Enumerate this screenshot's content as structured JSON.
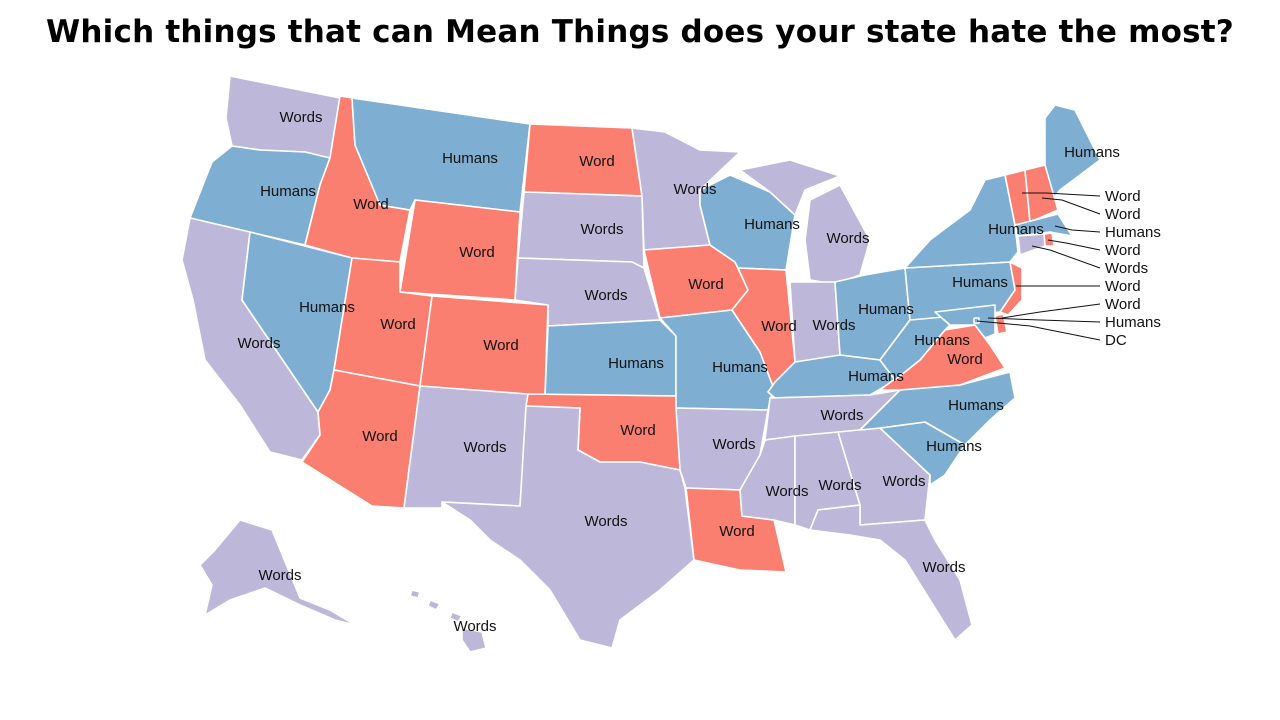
{
  "title": "Which things that can Mean Things does your state hate the most?",
  "colors": {
    "Words": "#bdb8d9",
    "Humans": "#7eafd2",
    "Word": "#fa7f70",
    "DC": "#7eafd2"
  },
  "states": [
    {
      "id": "WA",
      "value": "Words"
    },
    {
      "id": "OR",
      "value": "Humans"
    },
    {
      "id": "CA",
      "value": "Words"
    },
    {
      "id": "ID",
      "value": "Word"
    },
    {
      "id": "NV",
      "value": "Humans"
    },
    {
      "id": "MT",
      "value": "Humans"
    },
    {
      "id": "WY",
      "value": "Word"
    },
    {
      "id": "UT",
      "value": "Word"
    },
    {
      "id": "AZ",
      "value": "Word"
    },
    {
      "id": "CO",
      "value": "Word"
    },
    {
      "id": "NM",
      "value": "Words"
    },
    {
      "id": "ND",
      "value": "Word"
    },
    {
      "id": "SD",
      "value": "Words"
    },
    {
      "id": "NE",
      "value": "Words"
    },
    {
      "id": "KS",
      "value": "Humans"
    },
    {
      "id": "OK",
      "value": "Word"
    },
    {
      "id": "TX",
      "value": "Words"
    },
    {
      "id": "MN",
      "value": "Words"
    },
    {
      "id": "IA",
      "value": "Word"
    },
    {
      "id": "MO",
      "value": "Humans"
    },
    {
      "id": "AR",
      "value": "Words"
    },
    {
      "id": "LA",
      "value": "Word"
    },
    {
      "id": "WI",
      "value": "Humans"
    },
    {
      "id": "IL",
      "value": "Word"
    },
    {
      "id": "MI",
      "value": "Words"
    },
    {
      "id": "IN",
      "value": "Words"
    },
    {
      "id": "OH",
      "value": "Humans"
    },
    {
      "id": "KY",
      "value": "Humans"
    },
    {
      "id": "TN",
      "value": "Words"
    },
    {
      "id": "MS",
      "value": "Words"
    },
    {
      "id": "AL",
      "value": "Words"
    },
    {
      "id": "GA",
      "value": "Words"
    },
    {
      "id": "FL",
      "value": "Words"
    },
    {
      "id": "SC",
      "value": "Humans"
    },
    {
      "id": "NC",
      "value": "Humans"
    },
    {
      "id": "VA",
      "value": "Word"
    },
    {
      "id": "WV",
      "value": "Humans"
    },
    {
      "id": "PA",
      "value": "Humans"
    },
    {
      "id": "NY",
      "value": "Humans"
    },
    {
      "id": "ME",
      "value": "Humans"
    },
    {
      "id": "VT",
      "value": "Word"
    },
    {
      "id": "NH",
      "value": "Word"
    },
    {
      "id": "MA",
      "value": "Humans"
    },
    {
      "id": "RI",
      "value": "Word"
    },
    {
      "id": "CT",
      "value": "Words"
    },
    {
      "id": "NJ",
      "value": "Word"
    },
    {
      "id": "DE",
      "value": "Word"
    },
    {
      "id": "MD",
      "value": "Humans"
    },
    {
      "id": "DC",
      "value": "DC"
    },
    {
      "id": "AK",
      "value": "Words"
    },
    {
      "id": "HI",
      "value": "Words"
    }
  ],
  "labels": [
    {
      "text": "Words"
    },
    {
      "text": "Humans"
    },
    {
      "text": "Words"
    },
    {
      "text": "Word"
    },
    {
      "text": "Humans"
    },
    {
      "text": "Humans"
    },
    {
      "text": "Word"
    },
    {
      "text": "Word"
    },
    {
      "text": "Word"
    },
    {
      "text": "Word"
    },
    {
      "text": "Words"
    },
    {
      "text": "Word"
    },
    {
      "text": "Words"
    },
    {
      "text": "Words"
    },
    {
      "text": "Humans"
    },
    {
      "text": "Word"
    },
    {
      "text": "Words"
    },
    {
      "text": "Words"
    },
    {
      "text": "Word"
    },
    {
      "text": "Humans"
    },
    {
      "text": "Words"
    },
    {
      "text": "Word"
    },
    {
      "text": "Humans"
    },
    {
      "text": "Word"
    },
    {
      "text": "Words"
    },
    {
      "text": "Words"
    },
    {
      "text": "Humans"
    },
    {
      "text": "Humans"
    },
    {
      "text": "Words"
    },
    {
      "text": "Words"
    },
    {
      "text": "Words"
    },
    {
      "text": "Words"
    },
    {
      "text": "Words"
    },
    {
      "text": "Humans"
    },
    {
      "text": "Humans"
    },
    {
      "text": "Word"
    },
    {
      "text": "Humans"
    },
    {
      "text": "Humans"
    },
    {
      "text": "Humans"
    },
    {
      "text": "Humans"
    },
    {
      "text": "Words"
    },
    {
      "text": "Words"
    }
  ],
  "callouts": [
    {
      "state": "VT",
      "text": "Word"
    },
    {
      "state": "NH",
      "text": "Word"
    },
    {
      "state": "MA",
      "text": "Humans"
    },
    {
      "state": "RI",
      "text": "Word"
    },
    {
      "state": "CT",
      "text": "Words"
    },
    {
      "state": "NJ",
      "text": "Word"
    },
    {
      "state": "DE",
      "text": "Word"
    },
    {
      "state": "MD",
      "text": "Humans"
    },
    {
      "state": "DC",
      "text": "DC"
    }
  ]
}
